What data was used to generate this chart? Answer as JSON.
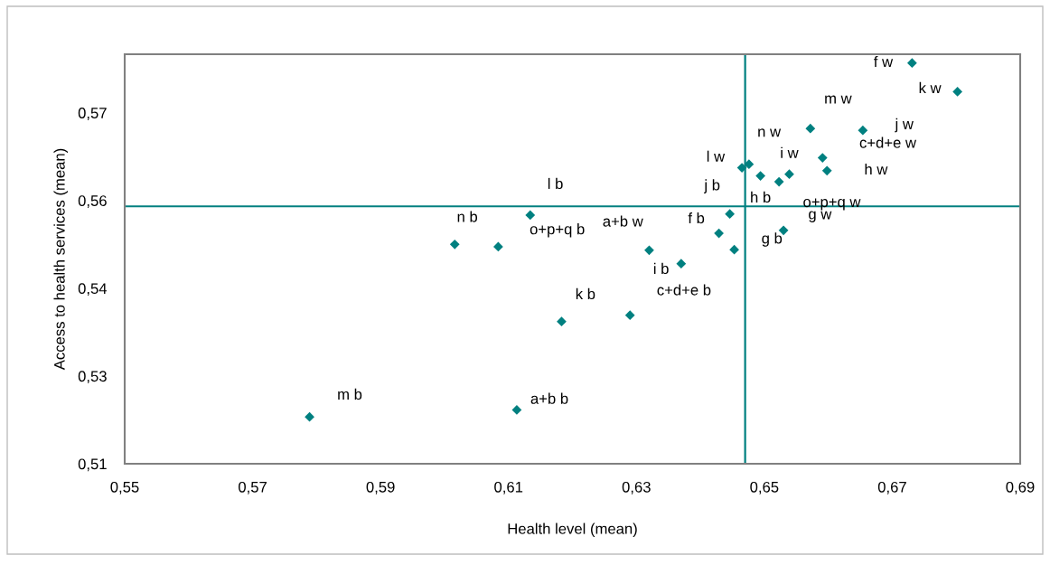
{
  "chart_data": {
    "type": "scatter",
    "xlabel": "Health level (mean)",
    "ylabel": "Access to health services (mean)",
    "x": [
      0.5789,
      0.6113,
      0.6016,
      0.6084,
      0.6134,
      0.6731,
      0.6802,
      0.6572,
      0.6654,
      0.6591,
      0.6598,
      0.6539,
      0.6523,
      0.6494,
      0.6476,
      0.6465,
      0.6446,
      0.6429,
      0.6453,
      0.653,
      0.632,
      0.637,
      0.6183,
      0.629
    ],
    "series": [
      {
        "color": "#008080",
        "values": [
          0.518,
          0.5192,
          0.5475,
          0.5471,
          0.5525,
          0.5785,
          0.5736,
          0.5673,
          0.567,
          0.5623,
          0.5601,
          0.5595,
          0.5582,
          0.5592,
          0.5612,
          0.5606,
          0.5527,
          0.5494,
          0.5466,
          0.5499,
          0.5465,
          0.5442,
          0.5343,
          0.5354
        ]
      }
    ],
    "marker": "diamond",
    "xlim": [
      0.55,
      0.69
    ],
    "xticks": [
      {
        "value": 0.55,
        "label": "0,55"
      },
      {
        "value": 0.57,
        "label": "0,57"
      },
      {
        "value": 0.59,
        "label": "0,59"
      },
      {
        "value": 0.61,
        "label": "0,61"
      },
      {
        "value": 0.63,
        "label": "0,63"
      },
      {
        "value": 0.65,
        "label": "0,65"
      },
      {
        "value": 0.67,
        "label": "0,67"
      },
      {
        "value": 0.69,
        "label": "0,69"
      }
    ],
    "ylim": [
      0.51,
      0.58
    ],
    "yticks": [
      {
        "value": 0.51,
        "label": "0,51"
      },
      {
        "value": 0.525,
        "label": "0,53"
      },
      {
        "value": 0.54,
        "label": "0,54"
      },
      {
        "value": 0.555,
        "label": "0,56"
      },
      {
        "value": 0.57,
        "label": "0,57"
      }
    ],
    "ref_lines": [
      {
        "axis": "x",
        "value": 0.647,
        "color": "#008080"
      },
      {
        "axis": "y",
        "value": 0.554,
        "color": "#008080"
      }
    ],
    "annotations": [
      {
        "text": "m b",
        "x": 0.5789,
        "y": 0.518
      },
      {
        "text": "a+b b",
        "x": 0.6113,
        "y": 0.5192
      },
      {
        "text": "n b",
        "x": 0.6016,
        "y": 0.5475
      },
      {
        "text": "o+p+q b",
        "x": 0.6084,
        "y": 0.5471
      },
      {
        "text": "l b",
        "x": 0.6134,
        "y": 0.5525
      },
      {
        "text": "f w",
        "x": 0.6731,
        "y": 0.5785
      },
      {
        "text": "k w",
        "x": 0.6802,
        "y": 0.5736
      },
      {
        "text": "m w",
        "x": 0.6572,
        "y": 0.5673
      },
      {
        "text": "j w",
        "x": 0.6654,
        "y": 0.567
      },
      {
        "text": "c+d+e w",
        "x": 0.6591,
        "y": 0.5623
      },
      {
        "text": "h w",
        "x": 0.6598,
        "y": 0.5601
      },
      {
        "text": "i w",
        "x": 0.6539,
        "y": 0.5595
      },
      {
        "text": "o+p+q w",
        "x": 0.6523,
        "y": 0.5582
      },
      {
        "text": "h b",
        "x": 0.6494,
        "y": 0.5592
      },
      {
        "text": "n w",
        "x": 0.6476,
        "y": 0.5612
      },
      {
        "text": "l w",
        "x": 0.6465,
        "y": 0.5606
      },
      {
        "text": "j b",
        "x": 0.6446,
        "y": 0.5527
      },
      {
        "text": "f b",
        "x": 0.6429,
        "y": 0.5494
      },
      {
        "text": "g b",
        "x": 0.6453,
        "y": 0.5466
      },
      {
        "text": "g w",
        "x": 0.653,
        "y": 0.5499
      },
      {
        "text": "a+b w",
        "x": 0.632,
        "y": 0.5465
      },
      {
        "text": "i b",
        "x": 0.637,
        "y": 0.5442
      },
      {
        "text": "k b",
        "x": 0.6183,
        "y": 0.5343
      },
      {
        "text": "c+d+e b",
        "x": 0.629,
        "y": 0.5354
      }
    ]
  }
}
